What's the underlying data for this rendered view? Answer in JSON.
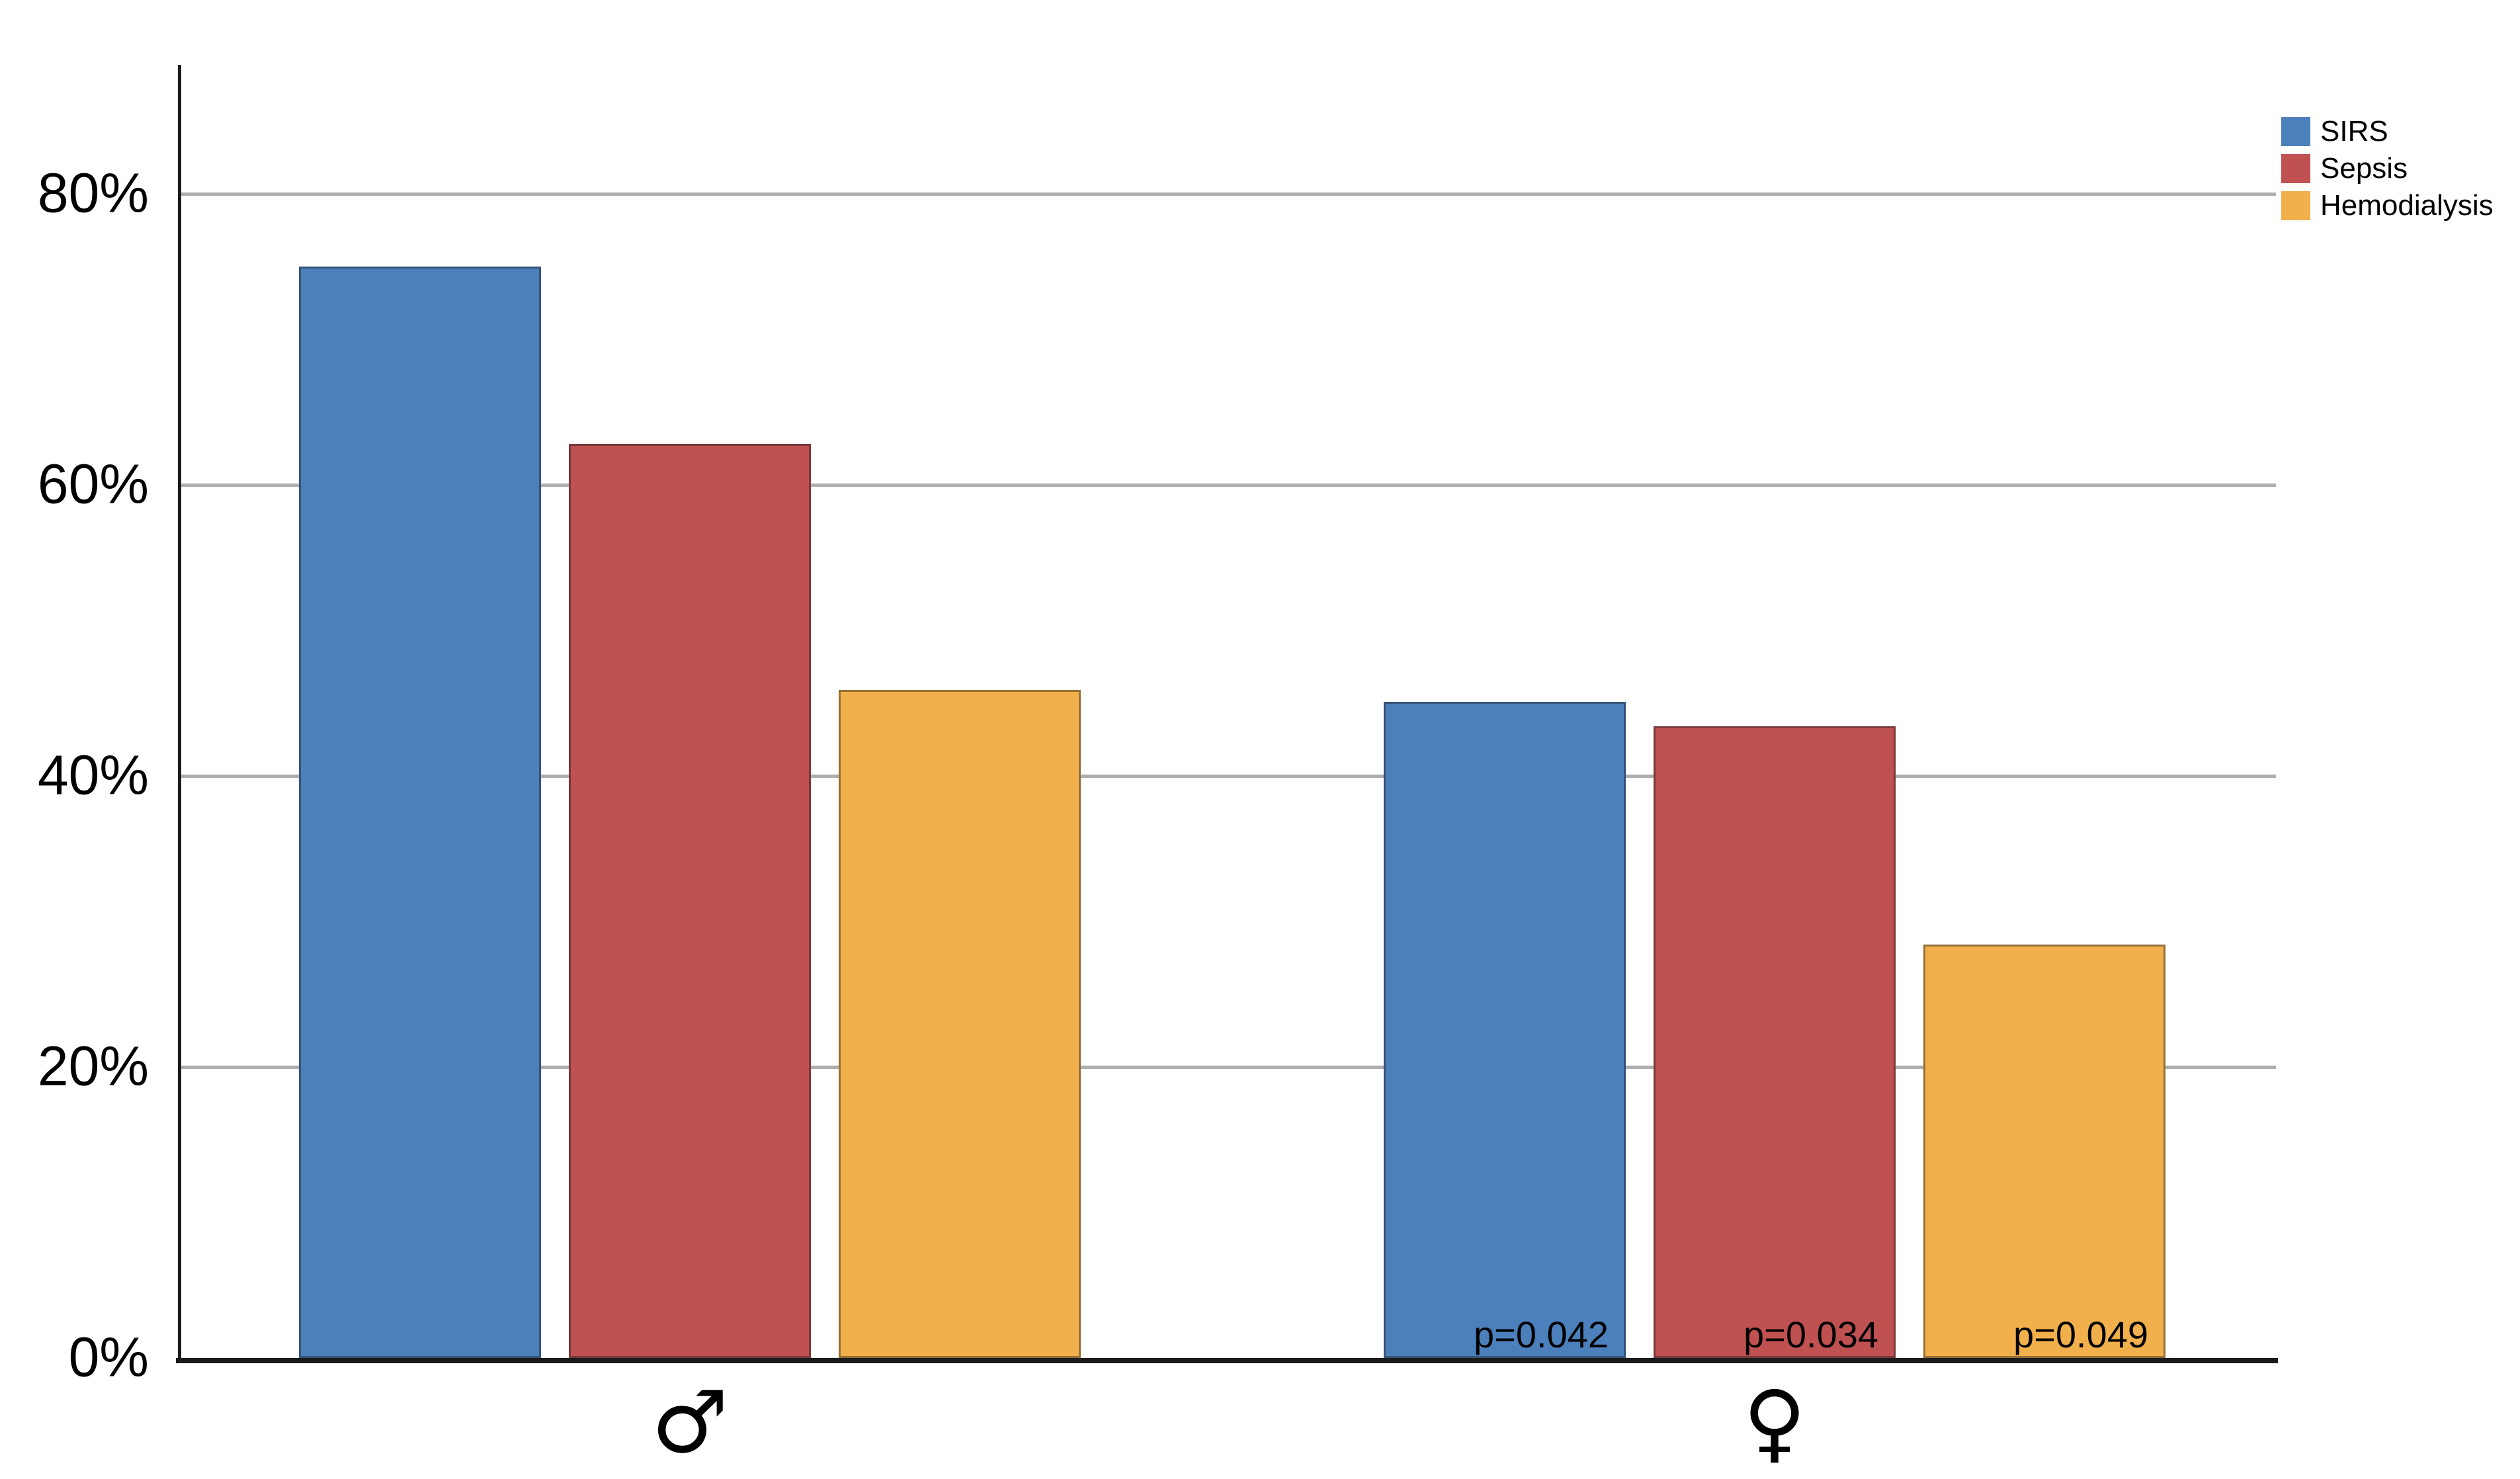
{
  "chart_data": {
    "type": "bar",
    "title": "",
    "unit": "%",
    "categories": [
      {
        "id": "male",
        "symbol": "♂"
      },
      {
        "id": "female",
        "symbol": "♀"
      }
    ],
    "series": [
      {
        "name": "SIRS",
        "color": "#4C80BC",
        "values": [
          75.0,
          45.1
        ]
      },
      {
        "name": "Sepsis",
        "color": "#C05151",
        "values": [
          62.8,
          43.4
        ]
      },
      {
        "name": "Hemodialysis",
        "color": "#F2B04C",
        "values": [
          45.9,
          28.4
        ]
      }
    ],
    "annotations": [
      {
        "category": "female",
        "series": "SIRS",
        "text": "p=0.042"
      },
      {
        "category": "female",
        "series": "Sepsis",
        "text": "p=0.034"
      },
      {
        "category": "female",
        "series": "Hemodialysis",
        "text": "p=0.049"
      }
    ],
    "y_ticks": [
      {
        "label": "0%",
        "value": 0
      },
      {
        "label": "20%",
        "value": 20
      },
      {
        "label": "40%",
        "value": 40
      },
      {
        "label": "60%",
        "value": 60
      },
      {
        "label": "80%",
        "value": 80
      }
    ],
    "ylim": [
      0,
      89
    ],
    "grid": true,
    "legend": {
      "position": "top-right",
      "entries": [
        "SIRS",
        "Sepsis",
        "Hemodialysis"
      ]
    },
    "colors": {
      "gridline": "#AEAEAE",
      "axis": "#1B1B1B",
      "text": "#000000"
    }
  }
}
